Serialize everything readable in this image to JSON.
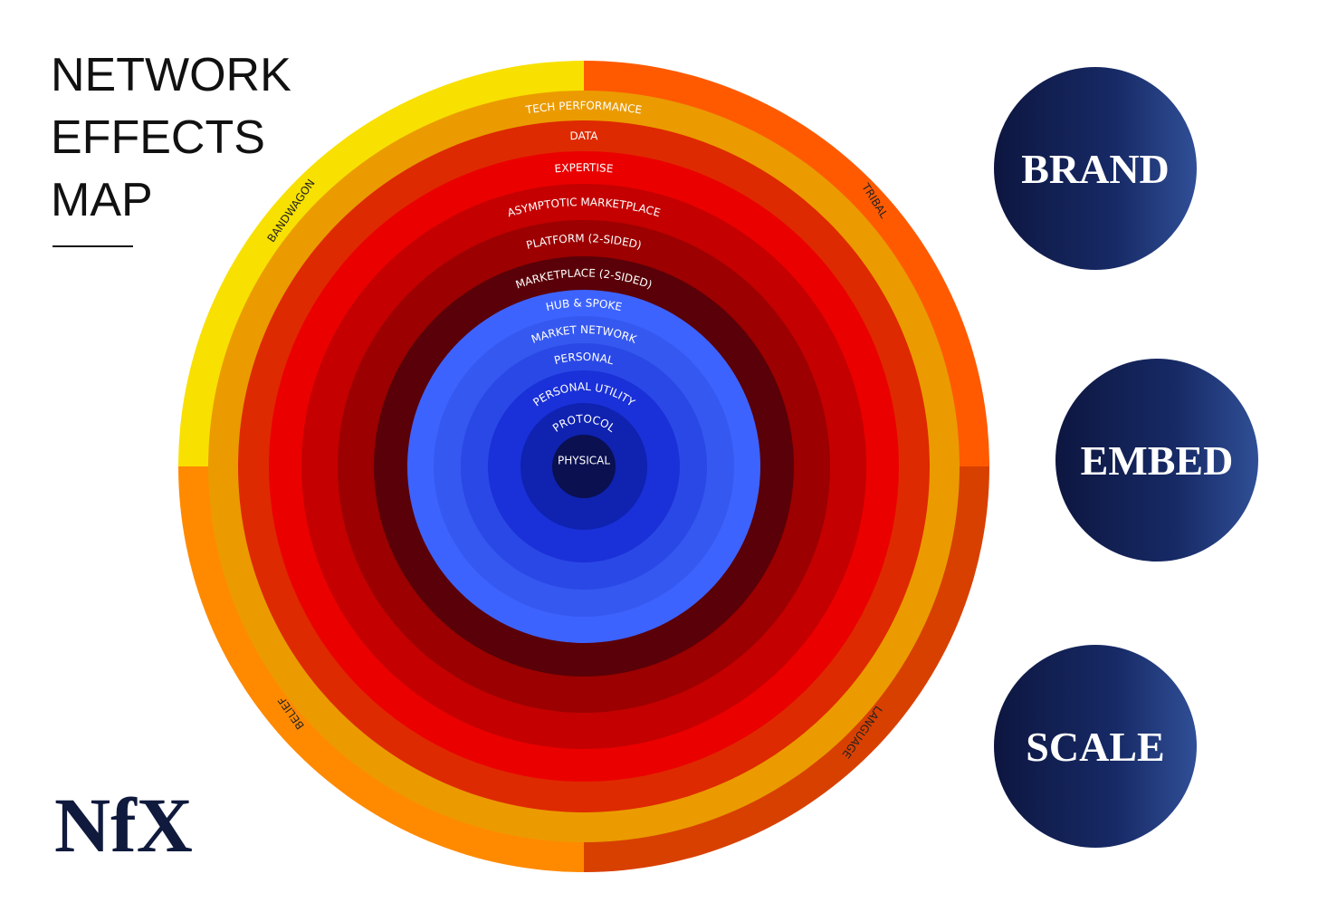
{
  "header": {
    "title_lines": [
      "NETWORK",
      "EFFECTS",
      "MAP"
    ]
  },
  "logo": "NfX",
  "quadrants": [
    "BANDWAGON",
    "TRIBAL",
    "BELIEF",
    "LANGUAGE"
  ],
  "rings": [
    "TECH PERFORMANCE",
    "DATA",
    "EXPERTISE",
    "ASYMPTOTIC MARKETPLACE",
    "PLATFORM (2-SIDED)",
    "MARKETPLACE (2-SIDED)",
    "HUB & SPOKE",
    "MARKET NETWORK",
    "PERSONAL",
    "PERSONAL UTILITY",
    "PROTOCOL",
    "PHYSICAL"
  ],
  "pillars": [
    "BRAND",
    "EMBED",
    "SCALE"
  ]
}
